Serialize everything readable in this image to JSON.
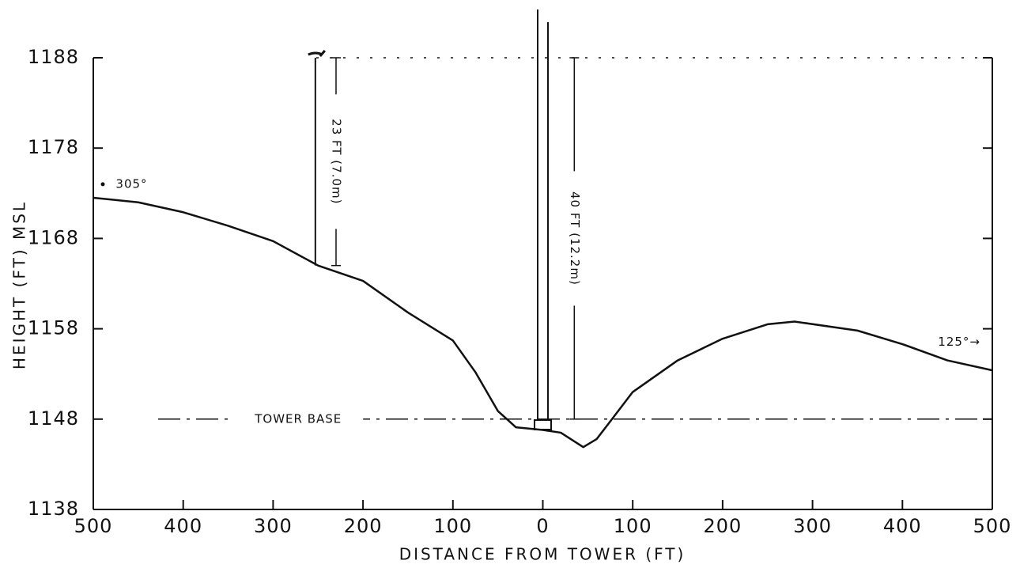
{
  "chart_data": {
    "type": "line",
    "x_label": "DISTANCE FROM TOWER (FT)",
    "y_label": "HEIGHT (FT) MSL",
    "x": [
      -500,
      -450,
      -400,
      -350,
      -300,
      -250,
      -200,
      -150,
      -100,
      -75,
      -50,
      -30,
      0,
      20,
      45,
      60,
      80,
      100,
      150,
      200,
      250,
      280,
      350,
      400,
      450,
      500
    ],
    "values": [
      1172.5,
      1172,
      1170.9,
      1169.4,
      1167.7,
      1165,
      1163.3,
      1159.8,
      1156.7,
      1153.2,
      1148.9,
      1147.1,
      1146.8,
      1146.5,
      1144.9,
      1145.8,
      1148.4,
      1151,
      1154.5,
      1156.9,
      1158.5,
      1158.8,
      1157.8,
      1156.3,
      1154.5,
      1153.4
    ],
    "color": "#111111",
    "xlim": [
      -500,
      500
    ],
    "xticks": [
      {
        "value": -500,
        "label": "500"
      },
      {
        "value": -400,
        "label": "400"
      },
      {
        "value": -300,
        "label": "300"
      },
      {
        "value": -200,
        "label": "200"
      },
      {
        "value": -100,
        "label": "100"
      },
      0,
      100,
      200,
      300,
      400,
      500
    ],
    "ylim": [
      1138,
      1188
    ],
    "yticks": [
      1138,
      1148,
      1158,
      1168,
      1178,
      1188
    ],
    "reference_lines": [
      {
        "value": 1148,
        "label": "TOWER BASE",
        "style": "dashdot"
      },
      {
        "value": 1188,
        "style": "dotted"
      }
    ],
    "dimensions": [
      {
        "label": "23 FT (7.0m)",
        "x": -230,
        "from": 1165,
        "to": 1188
      },
      {
        "label": "40 FT (12.2m)",
        "x": 35,
        "from": 1148,
        "to": 1188
      }
    ],
    "annotations": [
      "305°",
      "125°→"
    ]
  }
}
